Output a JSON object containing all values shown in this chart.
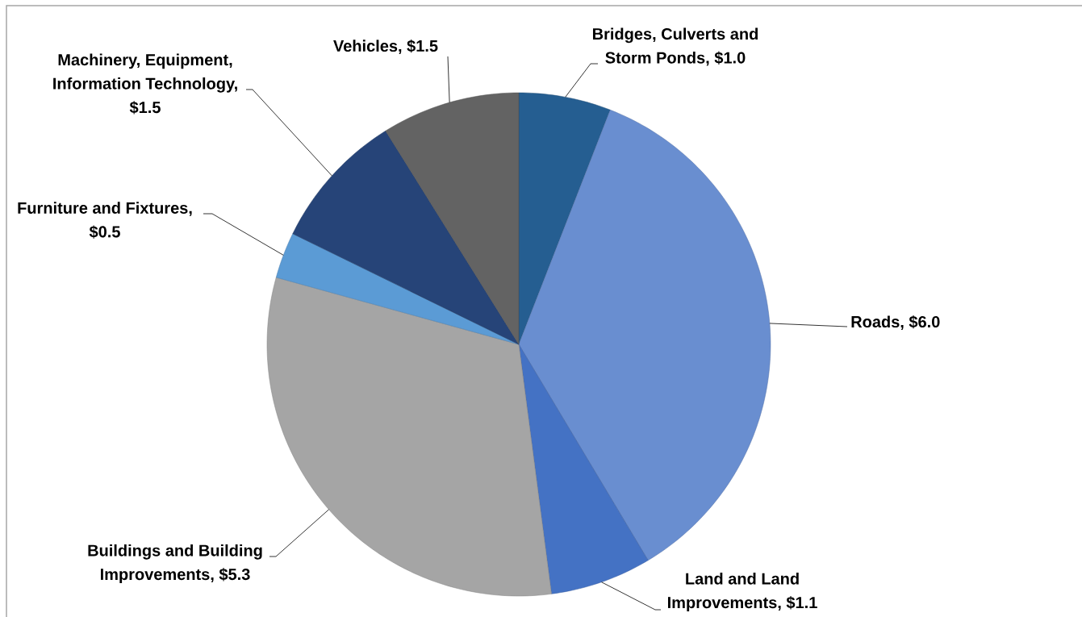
{
  "chart_data": {
    "type": "pie",
    "categories": [
      null,
      null,
      null,
      null,
      null,
      null,
      null
    ],
    "values": [
      1.0,
      6.0,
      1.1,
      5.3,
      0.5,
      1.5,
      1.5
    ],
    "value_labels": [
      "Bridges, Culverts and Storm Ponds, $1.0",
      "Roads, $6.0",
      "Land and Land Improvements, $1.1",
      "Buildings and Building Improvements, $5.3",
      "Furniture and Fixtures, $0.5",
      "Machinery, Equipment, Information Technology, $1.5",
      "Vehicles, $1.5"
    ],
    "colors": [
      "#255e91",
      "#698ed0",
      "#4472c4",
      "#a5a5a5",
      "#5b9bd5",
      "#264478",
      "#636363"
    ]
  }
}
